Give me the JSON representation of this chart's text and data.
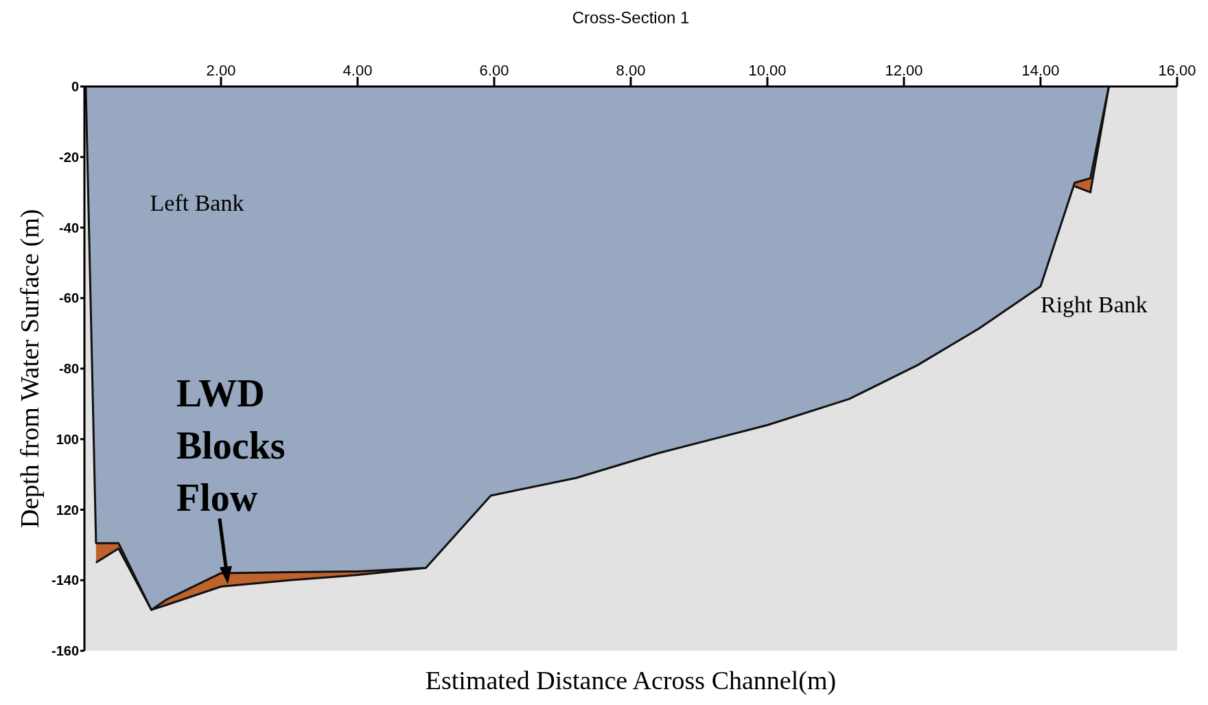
{
  "chart_data": {
    "type": "area",
    "title": "Cross-Section 1",
    "xlabel": "Estimated Distance Across Channel(m)",
    "ylabel": "Depth from Water Surface (m)",
    "x": [
      0.02,
      0.17,
      0.5,
      0.98,
      1.2,
      2.0,
      3.0,
      4.0,
      5.0,
      5.95,
      7.2,
      8.4,
      10.0,
      11.2,
      12.2,
      13.1,
      14.0,
      14.5,
      14.73,
      15.0
    ],
    "series": [
      {
        "color": "#c0622c",
        "x": [
          0.17,
          0.5,
          0.98,
          1.2,
          2.0,
          3.0,
          4.0,
          5.0,
          10.0,
          14.5,
          14.73,
          15.0
        ],
        "values": [
          -135,
          -131,
          -148.4,
          -147,
          -141.8,
          -140,
          -138.5,
          -136.5,
          null,
          -28.3,
          -30,
          0
        ]
      },
      {
        "color": "#97a8c0",
        "values": [
          0,
          -129.5,
          -129.5,
          -148.4,
          -145.5,
          -138,
          -137.7,
          -137.5,
          -136.5,
          -116,
          -111,
          -104,
          -96,
          -88.6,
          -79,
          -68.6,
          -56.7,
          -27.3,
          -26,
          0
        ]
      }
    ],
    "xlim": [
      0,
      16
    ],
    "xticks": [
      {
        "value": 2,
        "label": "2.00"
      },
      {
        "value": 4,
        "label": "4.00"
      },
      {
        "value": 6,
        "label": "6.00"
      },
      {
        "value": 8,
        "label": "8.00"
      },
      {
        "value": 10,
        "label": "10.00"
      },
      {
        "value": 12,
        "label": "12.00"
      },
      {
        "value": 14,
        "label": "14.00"
      },
      {
        "value": 16,
        "label": "16.00"
      }
    ],
    "ylim": [
      -160,
      0
    ],
    "yticks": [
      0,
      -20,
      -40,
      -60,
      -80,
      {
        "value": -100,
        "label": "100"
      },
      {
        "value": -120,
        "label": "120"
      },
      -140,
      -160
    ],
    "annotations": [
      "Left Bank",
      "Right Bank",
      {
        "text": "LWD\nBlocks\nFlow",
        "x": 2.1,
        "y": -141
      }
    ],
    "grid": false,
    "legend": false
  }
}
